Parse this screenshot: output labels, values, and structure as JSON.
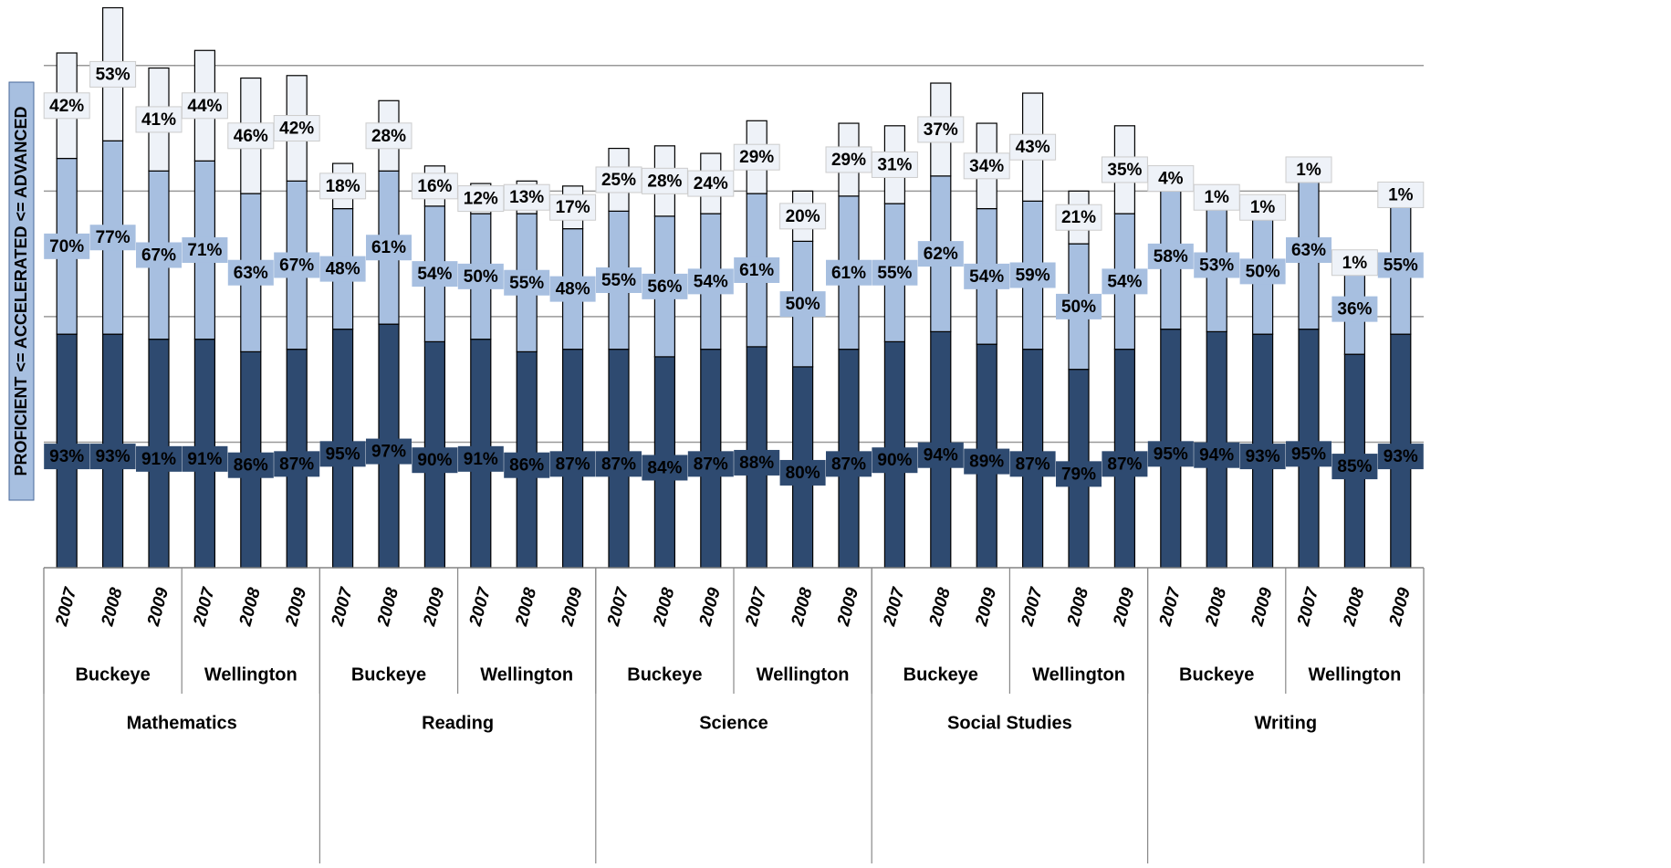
{
  "chart_data": {
    "type": "stacked_bar",
    "y_label": "PROFICIENT <= ACCELERATED <= ADVANCED",
    "categories": [
      "2007",
      "2008",
      "2009",
      "2007",
      "2008",
      "2009",
      "2007",
      "2008",
      "2009",
      "2007",
      "2008",
      "2009",
      "2007",
      "2008",
      "2009",
      "2007",
      "2008",
      "2009",
      "2007",
      "2008",
      "2009",
      "2007",
      "2008",
      "2009",
      "2007",
      "2008",
      "2009",
      "2007",
      "2008",
      "2009"
    ],
    "schools": [
      "Buckeye",
      "Wellington",
      "Buckeye",
      "Wellington",
      "Buckeye",
      "Wellington",
      "Buckeye",
      "Wellington",
      "Buckeye",
      "Wellington"
    ],
    "subjects": [
      "Mathematics",
      "Reading",
      "Science",
      "Social Studies",
      "Writing"
    ],
    "series": [
      {
        "color": "#2e4a70",
        "values": [
          93,
          93,
          91,
          91,
          86,
          87,
          95,
          97,
          90,
          91,
          86,
          87,
          87,
          84,
          87,
          88,
          80,
          87,
          90,
          94,
          89,
          87,
          79,
          87,
          95,
          94,
          93,
          95,
          85,
          93
        ],
        "value_labels": [
          "93%",
          "93%",
          "91%",
          "91%",
          "86%",
          "87%",
          "95%",
          "97%",
          "90%",
          "91%",
          "86%",
          "87%",
          "87%",
          "84%",
          "87%",
          "88%",
          "80%",
          "87%",
          "90%",
          "94%",
          "89%",
          "87%",
          "79%",
          "87%",
          "95%",
          "94%",
          "93%",
          "95%",
          "85%",
          "93%"
        ]
      },
      {
        "color": "#a7bfe0",
        "values": [
          70,
          77,
          67,
          71,
          63,
          67,
          48,
          61,
          54,
          50,
          55,
          48,
          55,
          56,
          54,
          61,
          50,
          61,
          55,
          62,
          54,
          59,
          50,
          54,
          58,
          53,
          50,
          63,
          36,
          55
        ],
        "value_labels": [
          "70%",
          "77%",
          "67%",
          "71%",
          "63%",
          "67%",
          "48%",
          "61%",
          "54%",
          "50%",
          "55%",
          "48%",
          "55%",
          "56%",
          "54%",
          "61%",
          "50%",
          "61%",
          "55%",
          "62%",
          "54%",
          "59%",
          "50%",
          "54%",
          "58%",
          "53%",
          "50%",
          "63%",
          "36%",
          "55%"
        ]
      },
      {
        "color": "#eef2f8",
        "values": [
          42,
          53,
          41,
          44,
          46,
          42,
          18,
          28,
          16,
          12,
          13,
          17,
          25,
          28,
          24,
          29,
          20,
          29,
          31,
          37,
          34,
          43,
          21,
          35,
          4,
          1,
          1,
          1,
          1,
          1
        ],
        "value_labels": [
          "42%",
          "53%",
          "41%",
          "44%",
          "46%",
          "42%",
          "18%",
          "28%",
          "16%",
          "12%",
          "13%",
          "17%",
          "25%",
          "28%",
          "24%",
          "29%",
          "20%",
          "29%",
          "31%",
          "37%",
          "34%",
          "43%",
          "21%",
          "35%",
          "4%",
          "1%",
          "1%",
          "1%",
          "1%",
          "1%"
        ]
      }
    ],
    "ylim": [
      0,
      225
    ],
    "yticks": [
      0,
      50,
      100,
      150,
      200
    ],
    "grid": true
  }
}
